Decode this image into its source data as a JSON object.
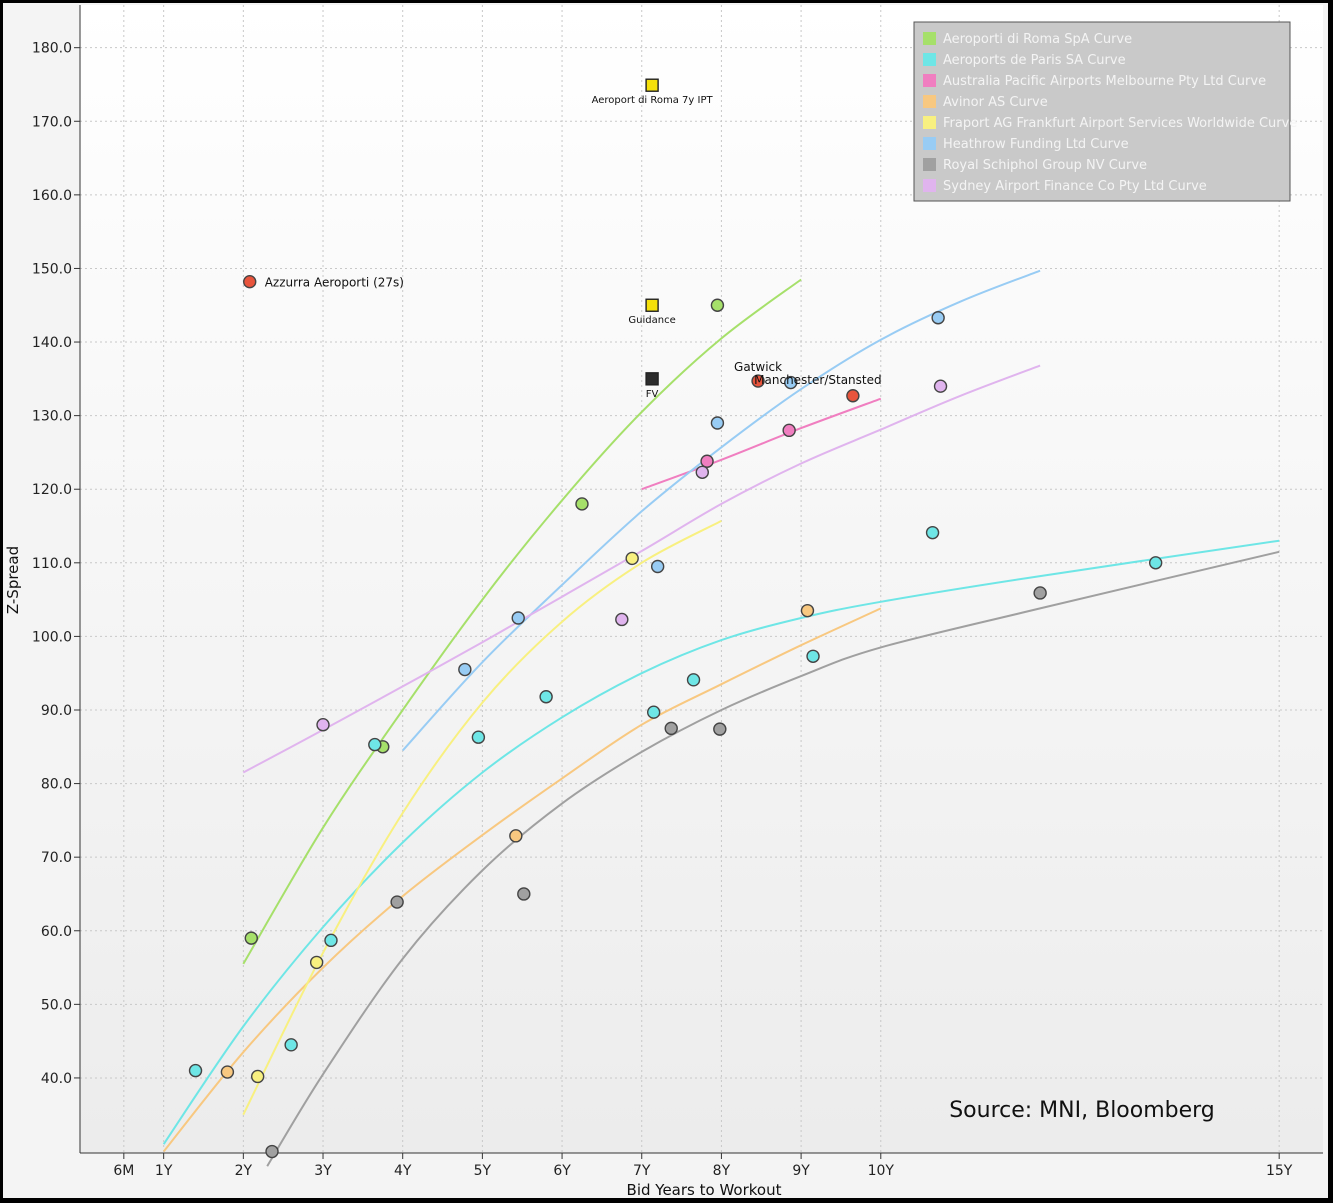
{
  "chart_data": {
    "type": "scatter",
    "xlabel": "Bid Years to Workout",
    "ylabel": "Z-Spread",
    "source": "Source: MNI, Bloomberg",
    "x_ticks": [
      {
        "value": 0.5,
        "label": "6M"
      },
      {
        "value": 1,
        "label": "1Y"
      },
      {
        "value": 2,
        "label": "2Y"
      },
      {
        "value": 3,
        "label": "3Y"
      },
      {
        "value": 4,
        "label": "4Y"
      },
      {
        "value": 5,
        "label": "5Y"
      },
      {
        "value": 6,
        "label": "6Y"
      },
      {
        "value": 7,
        "label": "7Y"
      },
      {
        "value": 8,
        "label": "8Y"
      },
      {
        "value": 9,
        "label": "9Y"
      },
      {
        "value": 10,
        "label": "10Y"
      },
      {
        "value": 15,
        "label": "15Y"
      }
    ],
    "y_ticks": [
      {
        "value": 40,
        "label": "40.0"
      },
      {
        "value": 50,
        "label": "50.0"
      },
      {
        "value": 60,
        "label": "60.0"
      },
      {
        "value": 70,
        "label": "70.0"
      },
      {
        "value": 80,
        "label": "80.0"
      },
      {
        "value": 90,
        "label": "90.0"
      },
      {
        "value": 100,
        "label": "100.0"
      },
      {
        "value": 110,
        "label": "110.0"
      },
      {
        "value": 120,
        "label": "120.0"
      },
      {
        "value": 130,
        "label": "130.0"
      },
      {
        "value": 140,
        "label": "140.0"
      },
      {
        "value": 150,
        "label": "150.0"
      },
      {
        "value": 160,
        "label": "160.0"
      },
      {
        "value": 170,
        "label": "170.0"
      },
      {
        "value": 180,
        "label": "180.0"
      }
    ],
    "xlim": [
      -0.05,
      15.55
    ],
    "ylim": [
      29.8,
      185.8
    ],
    "grid": true,
    "legend_position": "top-right",
    "series": [
      {
        "name": "Aeroporti di Roma SpA Curve",
        "color": "#a6e06a",
        "points": [
          [
            2.1,
            59
          ],
          [
            3.75,
            85
          ],
          [
            6.25,
            118
          ],
          [
            7.95,
            145
          ]
        ],
        "curve": [
          [
            2.0,
            55.5
          ],
          [
            3.0,
            74
          ],
          [
            4.0,
            90
          ],
          [
            5.0,
            105
          ],
          [
            6.0,
            118.5
          ],
          [
            7.0,
            130.5
          ],
          [
            8.0,
            140.5
          ],
          [
            9.0,
            148.5
          ]
        ]
      },
      {
        "name": "Aeroports de Paris SA Curve",
        "color": "#6ee6e6",
        "points": [
          [
            1.4,
            41
          ],
          [
            2.6,
            44.5
          ],
          [
            3.1,
            58.7
          ],
          [
            3.65,
            85.3
          ],
          [
            4.95,
            86.3
          ],
          [
            5.8,
            91.8
          ],
          [
            7.15,
            89.7
          ],
          [
            7.65,
            94.1
          ],
          [
            9.15,
            97.3
          ],
          [
            10.65,
            114.1
          ],
          [
            13.45,
            110
          ]
        ],
        "curve": [
          [
            1.0,
            31
          ],
          [
            2.0,
            47
          ],
          [
            3.0,
            60.5
          ],
          [
            4.0,
            72
          ],
          [
            5.0,
            81.5
          ],
          [
            6.0,
            89
          ],
          [
            7.0,
            95
          ],
          [
            8.0,
            99.5
          ],
          [
            9.0,
            102.5
          ],
          [
            10.0,
            104.7
          ],
          [
            12.0,
            108.2
          ],
          [
            15.0,
            113
          ]
        ]
      },
      {
        "name": "Australia Pacific Airports Melbourne Pty Ltd Curve",
        "color": "#f07ec0",
        "points": [
          [
            7.82,
            123.8
          ],
          [
            8.85,
            128
          ]
        ],
        "curve": [
          [
            7.0,
            120
          ],
          [
            8.0,
            124
          ],
          [
            9.0,
            128.3
          ],
          [
            10.0,
            132.3
          ]
        ]
      },
      {
        "name": "Avinor AS Curve",
        "color": "#f8c880",
        "points": [
          [
            1.8,
            40.8
          ],
          [
            5.42,
            72.9
          ],
          [
            9.08,
            103.5
          ]
        ],
        "curve": [
          [
            1.0,
            30
          ],
          [
            2.0,
            43.5
          ],
          [
            3.0,
            55
          ],
          [
            4.0,
            64.7
          ],
          [
            5.0,
            73
          ],
          [
            6.0,
            80.7
          ],
          [
            7.0,
            88
          ],
          [
            8.0,
            93.5
          ],
          [
            9.0,
            98.8
          ],
          [
            10.0,
            103.8
          ]
        ]
      },
      {
        "name": "Fraport AG Frankfurt Airport Services Worldwide Curve",
        "color": "#f8f080",
        "points": [
          [
            2.18,
            40.2
          ],
          [
            2.92,
            55.7
          ],
          [
            6.88,
            110.6
          ]
        ],
        "curve": [
          [
            2.0,
            35
          ],
          [
            3.0,
            57
          ],
          [
            4.0,
            76
          ],
          [
            5.0,
            91
          ],
          [
            6.0,
            102
          ],
          [
            7.0,
            110
          ],
          [
            8.0,
            115.7
          ]
        ]
      },
      {
        "name": "Heathrow Funding Ltd Curve",
        "color": "#98ccf4",
        "points": [
          [
            4.78,
            95.5
          ],
          [
            5.45,
            102.5
          ],
          [
            7.2,
            109.5
          ],
          [
            7.95,
            129
          ],
          [
            8.87,
            134.5
          ],
          [
            10.72,
            143.3
          ]
        ],
        "curve": [
          [
            4.0,
            84.5
          ],
          [
            5.0,
            96.5
          ],
          [
            6.0,
            107
          ],
          [
            7.0,
            117
          ],
          [
            8.0,
            125.7
          ],
          [
            9.0,
            133.6
          ],
          [
            10.0,
            140.3
          ],
          [
            11.0,
            145.5
          ],
          [
            12.0,
            149.7
          ]
        ]
      },
      {
        "name": "Royal Schiphol Group NV Curve",
        "color": "#a0a0a0",
        "points": [
          [
            2.36,
            30
          ],
          [
            3.93,
            63.9
          ],
          [
            5.52,
            65
          ],
          [
            7.37,
            87.5
          ],
          [
            7.98,
            87.4
          ],
          [
            12.0,
            105.9
          ]
        ],
        "curve": [
          [
            2.3,
            28
          ],
          [
            3.0,
            40.5
          ],
          [
            4.0,
            56.2
          ],
          [
            5.0,
            68.2
          ],
          [
            6.0,
            77.3
          ],
          [
            7.0,
            84.3
          ],
          [
            8.0,
            90
          ],
          [
            9.0,
            94.6
          ],
          [
            10.0,
            98.5
          ],
          [
            12.0,
            103.8
          ],
          [
            15.0,
            111.5
          ]
        ]
      },
      {
        "name": "Sydney Airport Finance Co Pty Ltd Curve",
        "color": "#e0b4ee",
        "points": [
          [
            3.0,
            88
          ],
          [
            6.75,
            102.3
          ],
          [
            7.76,
            122.3
          ],
          [
            10.75,
            134
          ]
        ],
        "curve": [
          [
            2.0,
            81.5
          ],
          [
            3.0,
            87.3
          ],
          [
            4.0,
            93.2
          ],
          [
            5.0,
            99.2
          ],
          [
            6.0,
            105.4
          ],
          [
            7.0,
            111.6
          ],
          [
            8.0,
            118
          ],
          [
            9.0,
            123.5
          ],
          [
            10.0,
            128.1
          ],
          [
            11.0,
            132.7
          ],
          [
            12.0,
            136.8
          ]
        ]
      }
    ],
    "annotations": [
      {
        "label": "Azzurra Aeroporti (27s)",
        "x": 2.08,
        "y": 148.2,
        "marker": "circle",
        "color": "#e8543c",
        "label_pos": "right"
      },
      {
        "label": "Gatwick",
        "x": 8.46,
        "y": 134.7,
        "marker": "circle",
        "color": "#e8543c",
        "label_pos": "above"
      },
      {
        "label": "Manchester/Stansted",
        "x": 9.65,
        "y": 132.7,
        "marker": "circle",
        "color": "#e8543c",
        "label_pos": "above-left"
      },
      {
        "label": "Aeroport di Roma 7y IPT",
        "x": 7.13,
        "y": 174.9,
        "marker": "square",
        "color": "#f5e00a",
        "label_pos": "below"
      },
      {
        "label": "Guidance",
        "x": 7.13,
        "y": 145,
        "marker": "square",
        "color": "#f5e00a",
        "label_pos": "below"
      },
      {
        "label": "FV",
        "x": 7.13,
        "y": 135,
        "marker": "square",
        "color": "#2c2c2c",
        "label_pos": "below"
      }
    ]
  }
}
